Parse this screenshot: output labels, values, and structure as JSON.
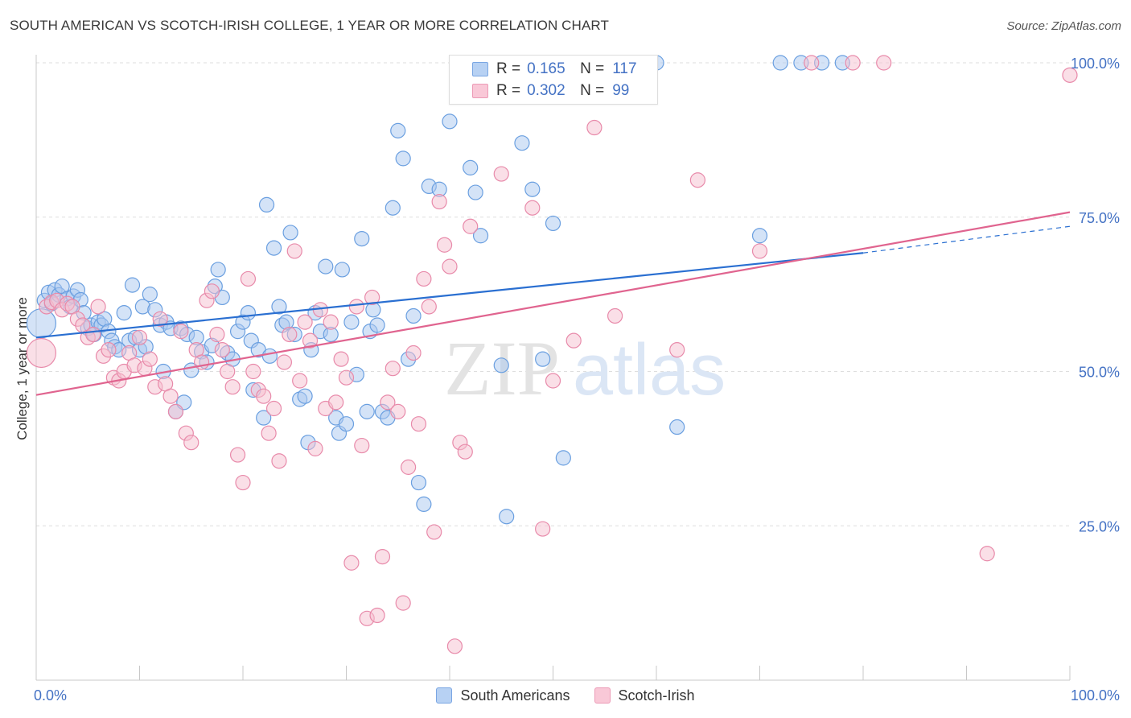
{
  "title": "SOUTH AMERICAN VS SCOTCH-IRISH COLLEGE, 1 YEAR OR MORE CORRELATION CHART",
  "source": "Source: ZipAtlas.com",
  "watermark": {
    "zip": "ZIP",
    "atlas": "atlas"
  },
  "legend": {
    "r_label": "R =",
    "n_label": "N =",
    "rows": [
      {
        "name": "South Americans",
        "r": "0.165",
        "n": "117",
        "color": "#9dc3f0"
      },
      {
        "name": "Scotch-Irish",
        "r": "0.302",
        "n": "99",
        "color": "#f5b3c8"
      }
    ]
  },
  "chart_data": {
    "type": "scatter",
    "xlabel": "",
    "ylabel": "College, 1 year or more",
    "xlim": [
      0,
      100
    ],
    "ylim": [
      0,
      100
    ],
    "x_tick_labels": [
      "0.0%",
      "100.0%"
    ],
    "y_ticks": [
      25,
      50,
      75,
      100
    ],
    "y_tick_labels": [
      "25.0%",
      "50.0%",
      "75.0%",
      "100.0%"
    ],
    "grid": true,
    "legend_position": "top-center",
    "series": [
      {
        "name": "South Americans",
        "color": "#6a9fe0",
        "fill": "#a9c8f0",
        "trend": {
          "x0": 0,
          "y0": 55.5,
          "x1": 80,
          "y1": 69.2,
          "dash_to_x": 100,
          "dash_to_y": 73.5,
          "color": "#2a6fd1"
        },
        "points": [
          [
            0.5,
            57.8
          ],
          [
            0.8,
            61.5
          ],
          [
            1.2,
            62.8
          ],
          [
            1.5,
            61
          ],
          [
            1.8,
            63.2
          ],
          [
            2.2,
            62.4
          ],
          [
            2.5,
            63.8
          ],
          [
            3,
            61.8
          ],
          [
            3.3,
            60.5
          ],
          [
            3.6,
            62.2
          ],
          [
            4,
            63.2
          ],
          [
            4.3,
            61.6
          ],
          [
            4.6,
            59.5
          ],
          [
            5,
            57
          ],
          [
            5.3,
            57.5
          ],
          [
            5.6,
            56
          ],
          [
            6,
            58
          ],
          [
            6.3,
            57.5
          ],
          [
            6.6,
            58.5
          ],
          [
            7,
            56.5
          ],
          [
            7.3,
            55
          ],
          [
            7.6,
            54
          ],
          [
            8,
            53.5
          ],
          [
            8.5,
            59.5
          ],
          [
            9,
            55
          ],
          [
            9.3,
            64
          ],
          [
            9.6,
            55.5
          ],
          [
            10,
            53.5
          ],
          [
            10.3,
            60.5
          ],
          [
            10.6,
            54
          ],
          [
            11,
            62.5
          ],
          [
            11.5,
            60
          ],
          [
            12,
            57.5
          ],
          [
            12.3,
            50
          ],
          [
            12.6,
            58
          ],
          [
            13,
            57
          ],
          [
            13.5,
            43.5
          ],
          [
            14,
            57
          ],
          [
            14.3,
            45
          ],
          [
            14.6,
            56
          ],
          [
            15,
            50.2
          ],
          [
            15.5,
            55.5
          ],
          [
            16,
            53.2
          ],
          [
            16.5,
            51.5
          ],
          [
            17,
            54.2
          ],
          [
            17.3,
            63.8
          ],
          [
            17.6,
            66.5
          ],
          [
            18,
            62
          ],
          [
            18.5,
            53
          ],
          [
            19,
            52
          ],
          [
            19.5,
            56.5
          ],
          [
            20,
            58
          ],
          [
            20.5,
            59.5
          ],
          [
            20.8,
            55
          ],
          [
            21,
            47
          ],
          [
            21.5,
            53.5
          ],
          [
            22,
            42.5
          ],
          [
            22.3,
            77
          ],
          [
            22.6,
            52.5
          ],
          [
            23,
            70
          ],
          [
            23.5,
            60.5
          ],
          [
            23.8,
            57.5
          ],
          [
            24.2,
            58
          ],
          [
            24.6,
            72.5
          ],
          [
            25,
            56
          ],
          [
            25.5,
            45.5
          ],
          [
            26,
            46
          ],
          [
            26.3,
            38.5
          ],
          [
            26.6,
            53.5
          ],
          [
            27,
            59.5
          ],
          [
            27.5,
            56.5
          ],
          [
            28,
            67
          ],
          [
            28.5,
            56
          ],
          [
            29,
            42.5
          ],
          [
            29.3,
            40
          ],
          [
            29.6,
            66.5
          ],
          [
            30,
            41.5
          ],
          [
            30.5,
            58
          ],
          [
            31,
            49.5
          ],
          [
            31.5,
            71.5
          ],
          [
            32,
            43.5
          ],
          [
            32.3,
            56.5
          ],
          [
            32.6,
            60
          ],
          [
            33,
            57.5
          ],
          [
            33.5,
            43.5
          ],
          [
            34,
            42.5
          ],
          [
            34.5,
            76.5
          ],
          [
            35,
            89
          ],
          [
            35.5,
            84.5
          ],
          [
            36,
            52
          ],
          [
            36.5,
            59
          ],
          [
            37,
            32
          ],
          [
            37.5,
            28.5
          ],
          [
            38,
            80
          ],
          [
            39,
            79.5
          ],
          [
            40,
            90.5
          ],
          [
            41,
            100
          ],
          [
            42,
            83
          ],
          [
            42.5,
            79
          ],
          [
            43,
            72
          ],
          [
            44,
            100
          ],
          [
            45,
            51
          ],
          [
            45.5,
            26.5
          ],
          [
            47,
            87
          ],
          [
            48,
            79.5
          ],
          [
            49,
            52
          ],
          [
            50,
            74
          ],
          [
            51,
            36
          ],
          [
            52,
            100
          ],
          [
            55,
            100
          ],
          [
            60,
            100
          ],
          [
            62,
            41
          ],
          [
            70,
            72
          ],
          [
            72,
            100
          ],
          [
            74,
            100
          ],
          [
            76,
            100
          ],
          [
            78,
            100
          ]
        ]
      },
      {
        "name": "Scotch-Irish",
        "color": "#e88aaa",
        "fill": "#f6bfd0",
        "trend": {
          "x0": 0,
          "y0": 46.2,
          "x1": 100,
          "y1": 75.8,
          "color": "#e0648f"
        },
        "points": [
          [
            0.5,
            53
          ],
          [
            1,
            60.5
          ],
          [
            1.5,
            61.2
          ],
          [
            2,
            61.5
          ],
          [
            2.5,
            60
          ],
          [
            3,
            61
          ],
          [
            3.5,
            60.5
          ],
          [
            4,
            58.5
          ],
          [
            4.5,
            57.5
          ],
          [
            5,
            55.5
          ],
          [
            5.5,
            56
          ],
          [
            6,
            60.5
          ],
          [
            6.5,
            52.5
          ],
          [
            7,
            53.5
          ],
          [
            7.5,
            49
          ],
          [
            8,
            48.5
          ],
          [
            8.5,
            50
          ],
          [
            9,
            53
          ],
          [
            9.5,
            51
          ],
          [
            10,
            55.5
          ],
          [
            10.5,
            50.5
          ],
          [
            11,
            52
          ],
          [
            11.5,
            47.5
          ],
          [
            12,
            58.5
          ],
          [
            12.5,
            48
          ],
          [
            13,
            46
          ],
          [
            13.5,
            43.5
          ],
          [
            14,
            56.5
          ],
          [
            14.5,
            40
          ],
          [
            15,
            38.5
          ],
          [
            15.5,
            53.5
          ],
          [
            16,
            51.5
          ],
          [
            16.5,
            61.5
          ],
          [
            17,
            63
          ],
          [
            17.5,
            56
          ],
          [
            18,
            53.5
          ],
          [
            18.5,
            50
          ],
          [
            19,
            47.5
          ],
          [
            19.5,
            36.5
          ],
          [
            20,
            32
          ],
          [
            20.5,
            65
          ],
          [
            21,
            50
          ],
          [
            21.5,
            47
          ],
          [
            22,
            46
          ],
          [
            22.5,
            40
          ],
          [
            23,
            44
          ],
          [
            23.5,
            35.5
          ],
          [
            24,
            51.5
          ],
          [
            24.5,
            56
          ],
          [
            25,
            69.5
          ],
          [
            25.5,
            48.5
          ],
          [
            26,
            58
          ],
          [
            26.5,
            55
          ],
          [
            27,
            37.5
          ],
          [
            27.5,
            60
          ],
          [
            28,
            44
          ],
          [
            28.5,
            58
          ],
          [
            29,
            45
          ],
          [
            29.5,
            52
          ],
          [
            30,
            49
          ],
          [
            30.5,
            19
          ],
          [
            31,
            60.5
          ],
          [
            31.5,
            38
          ],
          [
            32,
            10
          ],
          [
            32.5,
            62
          ],
          [
            33,
            10.5
          ],
          [
            33.5,
            20
          ],
          [
            34,
            45
          ],
          [
            34.5,
            50.5
          ],
          [
            35,
            43.5
          ],
          [
            35.5,
            12.5
          ],
          [
            36,
            34.5
          ],
          [
            36.5,
            53
          ],
          [
            37,
            41.5
          ],
          [
            37.5,
            65
          ],
          [
            38,
            60.5
          ],
          [
            38.5,
            24
          ],
          [
            39,
            77.5
          ],
          [
            39.5,
            70.5
          ],
          [
            40,
            67
          ],
          [
            40.5,
            5.5
          ],
          [
            41,
            38.5
          ],
          [
            41.5,
            37
          ],
          [
            42,
            73.5
          ],
          [
            45,
            82
          ],
          [
            48,
            76.5
          ],
          [
            49,
            24.5
          ],
          [
            50,
            48.5
          ],
          [
            52,
            55
          ],
          [
            54,
            89.5
          ],
          [
            56,
            59
          ],
          [
            62,
            53.5
          ],
          [
            64,
            81
          ],
          [
            70,
            69.5
          ],
          [
            75,
            100
          ],
          [
            79,
            100
          ],
          [
            82,
            100
          ],
          [
            92,
            20.5
          ],
          [
            100,
            98
          ]
        ]
      }
    ]
  }
}
